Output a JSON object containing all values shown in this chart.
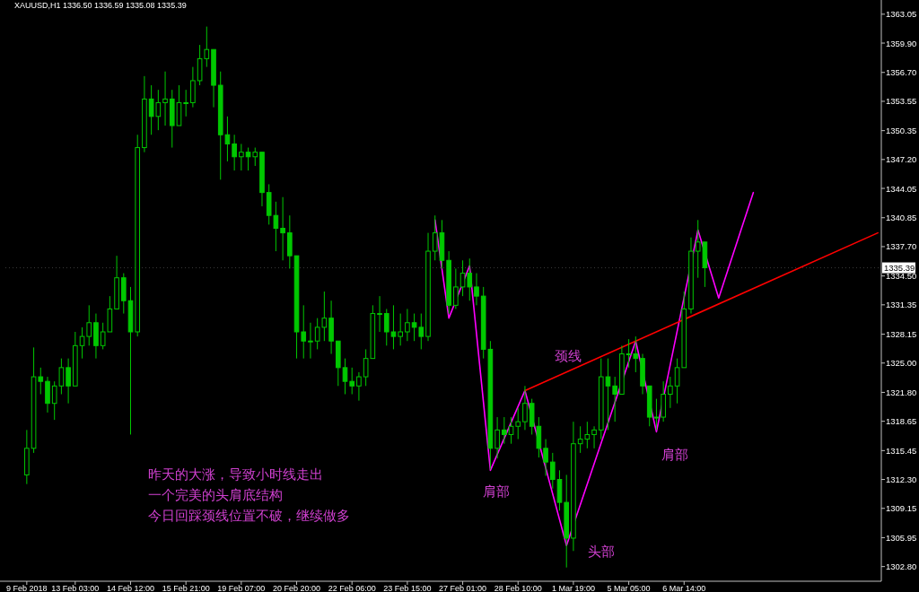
{
  "chart_data": {
    "type": "candlestick",
    "title": "XAUUSD,H1  1336.50 1336.59 1335.08 1335.39",
    "categories": [
      "9 Feb 2018",
      null,
      null,
      null,
      null,
      null,
      null,
      "13 Feb 03:00",
      null,
      null,
      null,
      null,
      null,
      null,
      null,
      "14 Feb 12:00",
      null,
      null,
      null,
      null,
      null,
      null,
      null,
      "15 Feb 21:00",
      null,
      null,
      null,
      null,
      null,
      null,
      null,
      "19 Feb 07:00",
      null,
      null,
      null,
      null,
      null,
      null,
      null,
      "20 Feb 20:00",
      null,
      null,
      null,
      null,
      null,
      null,
      null,
      "22 Feb 06:00",
      null,
      null,
      null,
      null,
      null,
      null,
      null,
      "23 Feb 15:00",
      null,
      null,
      null,
      null,
      null,
      null,
      null,
      "27 Feb 01:00",
      null,
      null,
      null,
      null,
      null,
      null,
      null,
      "28 Feb 10:00",
      null,
      null,
      null,
      null,
      null,
      null,
      null,
      "1 Mar 19:00",
      null,
      null,
      null,
      null,
      null,
      null,
      null,
      "5 Mar 05:00",
      null,
      null,
      null,
      null,
      null,
      null,
      null,
      "6 Mar 14:00",
      null,
      null,
      null,
      null,
      null,
      null,
      null,
      null,
      null,
      null,
      null,
      null,
      null,
      null,
      null,
      null,
      null,
      null,
      null,
      null,
      null,
      null,
      null,
      null,
      null,
      null,
      null,
      null
    ],
    "ylim": [
      1301.2,
      1364.6
    ],
    "yticks": [
      {
        "value": 1302.8,
        "label": "1302.80"
      },
      {
        "value": 1305.95,
        "label": "1305.95"
      },
      {
        "value": 1309.15,
        "label": "1309.15"
      },
      {
        "value": 1312.3,
        "label": "1312.30"
      },
      {
        "value": 1315.45,
        "label": "1315.45"
      },
      {
        "value": 1318.65,
        "label": "1318.65"
      },
      {
        "value": 1321.8,
        "label": "1321.80"
      },
      {
        "value": 1325,
        "label": "1325.00"
      },
      {
        "value": 1328.15,
        "label": "1328.15"
      },
      {
        "value": 1331.35,
        "label": "1331.35"
      },
      {
        "value": 1334.5,
        "label": "1334.50"
      },
      {
        "value": 1337.7,
        "label": "1337.70"
      },
      {
        "value": 1340.85,
        "label": "1340.85"
      },
      {
        "value": 1344.05,
        "label": "1344.05"
      },
      {
        "value": 1347.2,
        "label": "1347.20"
      },
      {
        "value": 1350.35,
        "label": "1350.35"
      },
      {
        "value": 1353.55,
        "label": "1353.55"
      },
      {
        "value": 1356.7,
        "label": "1356.70"
      },
      {
        "value": 1359.9,
        "label": "1359.90"
      },
      {
        "value": 1363.05,
        "label": "1363.05"
      }
    ],
    "ref_lines": [
      {
        "axis": "y",
        "value": 1335.39,
        "label": "1335.39",
        "color": "#3a3a3a",
        "line_style": "dotted"
      }
    ],
    "series": [
      {
        "type": "candlestick",
        "color": "#00c800",
        "ohlc": [
          [
            1312.8,
            1317.7,
            1311.8,
            1315.7
          ],
          [
            1315.7,
            1326.7,
            1315.2,
            1323.5
          ],
          [
            1323.5,
            1324.5,
            1321.6,
            1323.0
          ],
          [
            1323.0,
            1323.5,
            1319.6,
            1320.6
          ],
          [
            1320.6,
            1323.0,
            1318.8,
            1322.5
          ],
          [
            1322.5,
            1325.5,
            1321.6,
            1324.5
          ],
          [
            1324.5,
            1325.5,
            1320.6,
            1322.5
          ],
          [
            1322.5,
            1328.4,
            1322.5,
            1326.9
          ],
          [
            1326.9,
            1328.9,
            1325.5,
            1327.9
          ],
          [
            1327.9,
            1331.3,
            1326.9,
            1329.4
          ],
          [
            1329.4,
            1330.4,
            1325.5,
            1326.9
          ],
          [
            1326.9,
            1329.4,
            1326.5,
            1328.4
          ],
          [
            1328.4,
            1332.3,
            1328.4,
            1330.9
          ],
          [
            1330.9,
            1336.7,
            1330.9,
            1334.3
          ],
          [
            1334.3,
            1334.8,
            1330.4,
            1331.8
          ],
          [
            1331.8,
            1333.3,
            1317.2,
            1328.4
          ],
          [
            1328.4,
            1349.9,
            1327.9,
            1348.5
          ],
          [
            1348.5,
            1356.3,
            1348.0,
            1353.8
          ],
          [
            1353.8,
            1355.3,
            1349.9,
            1351.9
          ],
          [
            1351.9,
            1354.8,
            1350.4,
            1353.4
          ],
          [
            1353.4,
            1356.8,
            1350.9,
            1353.8
          ],
          [
            1353.8,
            1354.8,
            1348.5,
            1350.9
          ],
          [
            1350.9,
            1355.3,
            1350.9,
            1353.4
          ],
          [
            1353.4,
            1354.8,
            1351.9,
            1353.4
          ],
          [
            1353.4,
            1357.3,
            1352.9,
            1355.8
          ],
          [
            1355.8,
            1359.7,
            1355.3,
            1358.2
          ],
          [
            1358.2,
            1361.7,
            1357.3,
            1359.2
          ],
          [
            1359.2,
            1359.2,
            1352.9,
            1355.3
          ],
          [
            1355.3,
            1356.8,
            1345.0,
            1349.9
          ],
          [
            1349.9,
            1351.9,
            1347.0,
            1348.9
          ],
          [
            1348.9,
            1349.9,
            1346.0,
            1347.5
          ],
          [
            1347.5,
            1348.9,
            1346.0,
            1348.0
          ],
          [
            1348.0,
            1348.5,
            1346.0,
            1347.5
          ],
          [
            1347.5,
            1348.5,
            1346.5,
            1348.0
          ],
          [
            1348.0,
            1348.0,
            1342.1,
            1343.6
          ],
          [
            1343.6,
            1344.5,
            1340.1,
            1341.1
          ],
          [
            1341.1,
            1342.6,
            1337.2,
            1339.7
          ],
          [
            1339.7,
            1343.1,
            1336.2,
            1339.2
          ],
          [
            1339.2,
            1341.1,
            1335.3,
            1336.7
          ],
          [
            1336.7,
            1336.7,
            1325.5,
            1328.4
          ],
          [
            1328.4,
            1331.3,
            1325.5,
            1327.4
          ],
          [
            1327.4,
            1329.4,
            1325.5,
            1327.4
          ],
          [
            1327.4,
            1329.9,
            1326.5,
            1328.9
          ],
          [
            1328.9,
            1332.8,
            1327.4,
            1329.9
          ],
          [
            1329.9,
            1331.8,
            1326.0,
            1327.4
          ],
          [
            1327.4,
            1327.4,
            1322.5,
            1324.5
          ],
          [
            1324.5,
            1325.5,
            1321.6,
            1323.0
          ],
          [
            1323.0,
            1324.5,
            1321.6,
            1322.5
          ],
          [
            1322.5,
            1324.0,
            1320.9,
            1323.5
          ],
          [
            1323.5,
            1326.5,
            1322.5,
            1325.5
          ],
          [
            1325.5,
            1331.3,
            1325.5,
            1330.4
          ],
          [
            1330.4,
            1332.3,
            1328.4,
            1330.4
          ],
          [
            1330.4,
            1330.9,
            1326.9,
            1328.4
          ],
          [
            1328.4,
            1331.3,
            1326.5,
            1327.9
          ],
          [
            1327.9,
            1330.4,
            1326.9,
            1328.4
          ],
          [
            1328.4,
            1330.9,
            1327.4,
            1329.4
          ],
          [
            1329.4,
            1330.4,
            1327.4,
            1328.9
          ],
          [
            1328.9,
            1330.4,
            1326.5,
            1327.9
          ],
          [
            1327.9,
            1339.2,
            1327.4,
            1337.2
          ],
          [
            1337.2,
            1341.1,
            1336.2,
            1339.2
          ],
          [
            1339.2,
            1340.6,
            1335.3,
            1336.2
          ],
          [
            1336.2,
            1337.2,
            1330.4,
            1331.3
          ],
          [
            1331.3,
            1335.3,
            1330.9,
            1333.3
          ],
          [
            1333.3,
            1336.2,
            1332.3,
            1334.8
          ],
          [
            1334.8,
            1336.4,
            1331.8,
            1333.3
          ],
          [
            1333.3,
            1334.8,
            1331.3,
            1332.3
          ],
          [
            1332.3,
            1333.3,
            1325.5,
            1326.5
          ],
          [
            1326.5,
            1327.4,
            1313.4,
            1315.7
          ],
          [
            1315.7,
            1319.1,
            1314.6,
            1317.7
          ],
          [
            1317.7,
            1319.1,
            1316.2,
            1317.2
          ],
          [
            1317.2,
            1319.1,
            1316.2,
            1318.1
          ],
          [
            1318.1,
            1320.1,
            1316.7,
            1318.6
          ],
          [
            1318.6,
            1322.5,
            1317.7,
            1320.6
          ],
          [
            1320.6,
            1321.1,
            1317.2,
            1318.1
          ],
          [
            1318.1,
            1319.1,
            1314.7,
            1315.7
          ],
          [
            1315.7,
            1316.7,
            1312.7,
            1314.2
          ],
          [
            1314.2,
            1315.2,
            1311.3,
            1312.3
          ],
          [
            1312.3,
            1313.3,
            1308.9,
            1309.8
          ],
          [
            1309.8,
            1312.8,
            1302.7,
            1305.9
          ],
          [
            1305.9,
            1318.6,
            1304.5,
            1316.2
          ],
          [
            1316.2,
            1318.1,
            1315.2,
            1316.7
          ],
          [
            1316.7,
            1318.6,
            1315.7,
            1317.2
          ],
          [
            1317.2,
            1318.1,
            1315.7,
            1317.7
          ],
          [
            1317.7,
            1325.5,
            1316.7,
            1323.5
          ],
          [
            1323.5,
            1325.5,
            1317.7,
            1322.5
          ],
          [
            1322.5,
            1323.5,
            1318.6,
            1321.6
          ],
          [
            1321.6,
            1326.9,
            1321.6,
            1326.0
          ],
          [
            1326.0,
            1327.6,
            1324.5,
            1326.0
          ],
          [
            1326.0,
            1327.9,
            1324.0,
            1325.5
          ],
          [
            1325.5,
            1326.0,
            1321.6,
            1322.5
          ],
          [
            1322.5,
            1322.5,
            1318.1,
            1319.1
          ],
          [
            1319.1,
            1321.1,
            1317.7,
            1319.1
          ],
          [
            1319.1,
            1323.0,
            1318.6,
            1321.6
          ],
          [
            1321.6,
            1323.5,
            1320.1,
            1322.5
          ],
          [
            1322.5,
            1325.5,
            1320.6,
            1324.5
          ],
          [
            1324.5,
            1332.8,
            1324.5,
            1330.9
          ],
          [
            1330.9,
            1338.7,
            1330.4,
            1337.2
          ],
          [
            1337.2,
            1340.6,
            1334.3,
            1338.2
          ],
          [
            1338.2,
            1338.2,
            1333.3,
            1335.39
          ],
          null,
          null,
          null,
          null,
          null,
          null,
          null,
          null,
          null,
          null,
          null,
          null,
          null,
          null,
          null,
          null,
          null,
          null,
          null,
          null,
          null,
          null,
          null,
          null,
          null
        ]
      },
      {
        "type": "line",
        "color": "#ff00ff",
        "values": [
          null,
          null,
          null,
          null,
          null,
          null,
          null,
          null,
          null,
          null,
          null,
          null,
          null,
          null,
          null,
          null,
          null,
          null,
          null,
          null,
          null,
          null,
          null,
          null,
          null,
          null,
          null,
          null,
          null,
          null,
          null,
          null,
          null,
          null,
          null,
          null,
          null,
          null,
          null,
          null,
          null,
          null,
          null,
          null,
          null,
          null,
          null,
          null,
          null,
          null,
          null,
          null,
          null,
          null,
          null,
          null,
          null,
          null,
          null,
          1340.6,
          null,
          1329.9,
          null,
          null,
          1335.6,
          null,
          null,
          1313.3,
          null,
          null,
          null,
          null,
          1322.0,
          null,
          null,
          null,
          null,
          null,
          1305.1,
          null,
          null,
          null,
          null,
          null,
          null,
          null,
          null,
          null,
          1327.4,
          null,
          null,
          1317.5,
          null,
          null,
          null,
          null,
          null,
          1339.5,
          null,
          null,
          1332.1,
          null,
          null,
          null,
          null,
          1343.6,
          null,
          null,
          null,
          null,
          null,
          null,
          null,
          null,
          null,
          null,
          null,
          null,
          null,
          null,
          null,
          null,
          null,
          null
        ]
      },
      {
        "type": "line",
        "color": "#ff0000",
        "values": [
          null,
          null,
          null,
          null,
          null,
          null,
          null,
          null,
          null,
          null,
          null,
          null,
          null,
          null,
          null,
          null,
          null,
          null,
          null,
          null,
          null,
          null,
          null,
          null,
          null,
          null,
          null,
          null,
          null,
          null,
          null,
          null,
          null,
          null,
          null,
          null,
          null,
          null,
          null,
          null,
          null,
          null,
          null,
          null,
          null,
          null,
          null,
          null,
          null,
          null,
          null,
          null,
          null,
          null,
          null,
          null,
          null,
          null,
          null,
          null,
          null,
          null,
          null,
          null,
          null,
          null,
          null,
          null,
          null,
          null,
          null,
          null,
          1322.0,
          null,
          null,
          null,
          null,
          null,
          null,
          null,
          null,
          null,
          null,
          null,
          null,
          null,
          null,
          null,
          null,
          null,
          null,
          null,
          null,
          null,
          null,
          null,
          null,
          null,
          null,
          null,
          null,
          null,
          null,
          null,
          null,
          null,
          null,
          null,
          null,
          null,
          null,
          null,
          null,
          null,
          null,
          null,
          null,
          null,
          null,
          null,
          null,
          null,
          null,
          1339.2
        ]
      }
    ],
    "annotations": [
      "颈线",
      "肩部",
      "头部",
      "肩部",
      "昨天的大涨，导致小时线走出",
      "一个完美的头肩底结构",
      "今日回踩颈线位置不破，继续做多"
    ]
  }
}
